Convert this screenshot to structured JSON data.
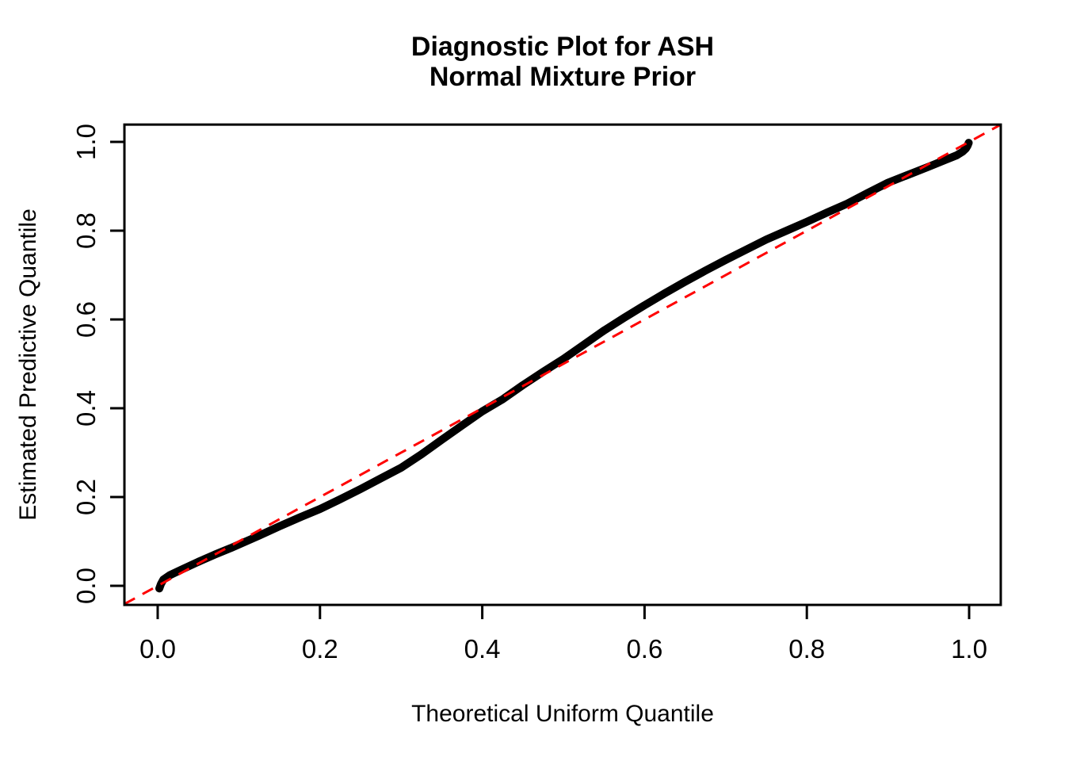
{
  "figure": {
    "title_line1": "Diagnostic Plot for ASH",
    "title_line2": "Normal Mixture Prior",
    "xlabel": "Theoretical Uniform Quantile",
    "ylabel": "Estimated Predictive Quantile"
  },
  "colors": {
    "background": "#FFFFFF",
    "axis": "#000000",
    "curve": "#000000",
    "reference_line": "#FF0000"
  },
  "chart_data": {
    "type": "line",
    "title": "Diagnostic Plot for ASH\nNormal Mixture Prior",
    "xlabel": "Theoretical Uniform Quantile",
    "ylabel": "Estimated Predictive Quantile",
    "xlim": [
      -0.041,
      1.039
    ],
    "ylim": [
      -0.043,
      1.039
    ],
    "grid": false,
    "legend": "none",
    "x_ticks": [
      0.0,
      0.2,
      0.4,
      0.6,
      0.8,
      1.0
    ],
    "y_ticks": [
      0.0,
      0.2,
      0.4,
      0.6,
      0.8,
      1.0
    ],
    "x_tick_labels": [
      "0.0",
      "0.2",
      "0.4",
      "0.6",
      "0.8",
      "1.0"
    ],
    "y_tick_labels": [
      "0.0",
      "0.2",
      "0.4",
      "0.6",
      "0.8",
      "1.0"
    ],
    "series": [
      {
        "name": "estimated-predictive-quantile-curve",
        "style": "solid-thick",
        "color": "#000000",
        "points": [
          [
            0.002,
            -0.006
          ],
          [
            0.004,
            0.004
          ],
          [
            0.007,
            0.014
          ],
          [
            0.015,
            0.024
          ],
          [
            0.03,
            0.037
          ],
          [
            0.05,
            0.054
          ],
          [
            0.07,
            0.07
          ],
          [
            0.09,
            0.085
          ],
          [
            0.1,
            0.093
          ],
          [
            0.125,
            0.113
          ],
          [
            0.15,
            0.134
          ],
          [
            0.175,
            0.154
          ],
          [
            0.2,
            0.173
          ],
          [
            0.225,
            0.195
          ],
          [
            0.25,
            0.218
          ],
          [
            0.275,
            0.242
          ],
          [
            0.3,
            0.266
          ],
          [
            0.325,
            0.296
          ],
          [
            0.35,
            0.329
          ],
          [
            0.375,
            0.361
          ],
          [
            0.4,
            0.393
          ],
          [
            0.425,
            0.42
          ],
          [
            0.45,
            0.452
          ],
          [
            0.475,
            0.482
          ],
          [
            0.5,
            0.511
          ],
          [
            0.525,
            0.543
          ],
          [
            0.55,
            0.575
          ],
          [
            0.575,
            0.604
          ],
          [
            0.6,
            0.632
          ],
          [
            0.625,
            0.659
          ],
          [
            0.65,
            0.685
          ],
          [
            0.675,
            0.71
          ],
          [
            0.7,
            0.734
          ],
          [
            0.725,
            0.757
          ],
          [
            0.75,
            0.78
          ],
          [
            0.775,
            0.8
          ],
          [
            0.8,
            0.82
          ],
          [
            0.825,
            0.841
          ],
          [
            0.85,
            0.861
          ],
          [
            0.875,
            0.885
          ],
          [
            0.9,
            0.908
          ],
          [
            0.925,
            0.926
          ],
          [
            0.95,
            0.944
          ],
          [
            0.97,
            0.959
          ],
          [
            0.985,
            0.97
          ],
          [
            0.992,
            0.978
          ],
          [
            0.996,
            0.985
          ],
          [
            0.998,
            0.991
          ],
          [
            0.9995,
            0.998
          ]
        ]
      },
      {
        "name": "reference-line-y-equals-x",
        "style": "dashed",
        "color": "#FF0000",
        "points": [
          [
            -0.041,
            -0.041
          ],
          [
            1.039,
            1.039
          ]
        ]
      }
    ]
  }
}
